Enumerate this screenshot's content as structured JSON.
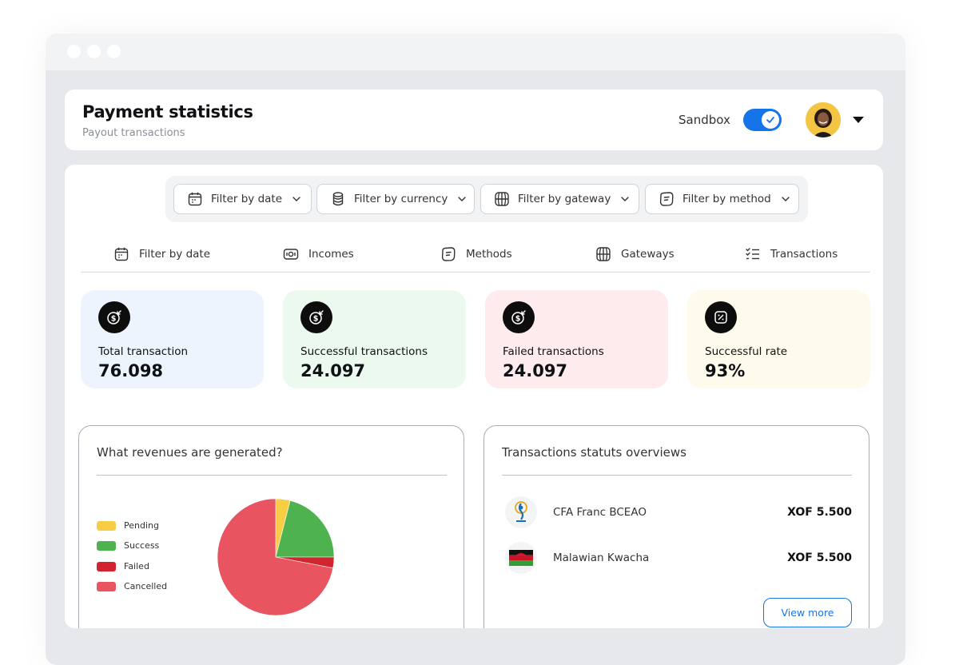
{
  "window": {
    "dots": 3
  },
  "header": {
    "title": "Payment statistics",
    "subtitle": "Payout transactions",
    "sandbox_label": "Sandbox",
    "sandbox_on": true
  },
  "filters": [
    {
      "label": "Filter by date",
      "icon": "calendar-icon"
    },
    {
      "label": "Filter by currency",
      "icon": "coins-icon"
    },
    {
      "label": "Filter by gateway",
      "icon": "globe-icon"
    },
    {
      "label": "Filter by method",
      "icon": "method-icon"
    }
  ],
  "tabs": [
    {
      "label": "Filter by date",
      "icon": "calendar-icon"
    },
    {
      "label": "Incomes",
      "icon": "cash-icon"
    },
    {
      "label": "Methods",
      "icon": "method-icon"
    },
    {
      "label": "Gateways",
      "icon": "globe-icon"
    },
    {
      "label": "Transactions",
      "icon": "checklist-icon"
    }
  ],
  "cards": [
    {
      "label": "Total transaction",
      "value": "76.098",
      "bg": "#edf4fd",
      "icon": "dollar-arrow-icon"
    },
    {
      "label": "Successful transactions",
      "value": "24.097",
      "bg": "#ebf9ee",
      "icon": "dollar-arrow-icon"
    },
    {
      "label": "Failed transactions",
      "value": "24.097",
      "bg": "#fdebed",
      "icon": "dollar-arrow-icon"
    },
    {
      "label": "Successful rate",
      "value": "93%",
      "bg": "#fefbed",
      "icon": "percent-icon"
    }
  ],
  "revenue": {
    "title": "What revenues are generated?",
    "legend": [
      {
        "label": "Pending",
        "color": "#f7cd46"
      },
      {
        "label": "Success",
        "color": "#4eb34e"
      },
      {
        "label": "Failed",
        "color": "#d1242e"
      },
      {
        "label": "Cancelled",
        "color": "#e95461"
      }
    ]
  },
  "chart_data": {
    "type": "pie",
    "title": "What revenues are generated?",
    "categories": [
      "Pending",
      "Success",
      "Failed",
      "Cancelled"
    ],
    "values": [
      4,
      21,
      3,
      72
    ],
    "colors": [
      "#f7cd46",
      "#4eb34e",
      "#d1242e",
      "#e95461"
    ],
    "legend_position": "left"
  },
  "status": {
    "title": "Transactions statuts overviews",
    "rows": [
      {
        "name": "CFA Franc BCEAO",
        "amount": "XOF 5.500",
        "icon": "bceao-logo-icon"
      },
      {
        "name": "Malawian Kwacha",
        "amount": "XOF 5.500",
        "icon": "malawi-flag-icon"
      }
    ],
    "view_more": "View more"
  },
  "colors": {
    "accent": "#1474e8"
  }
}
